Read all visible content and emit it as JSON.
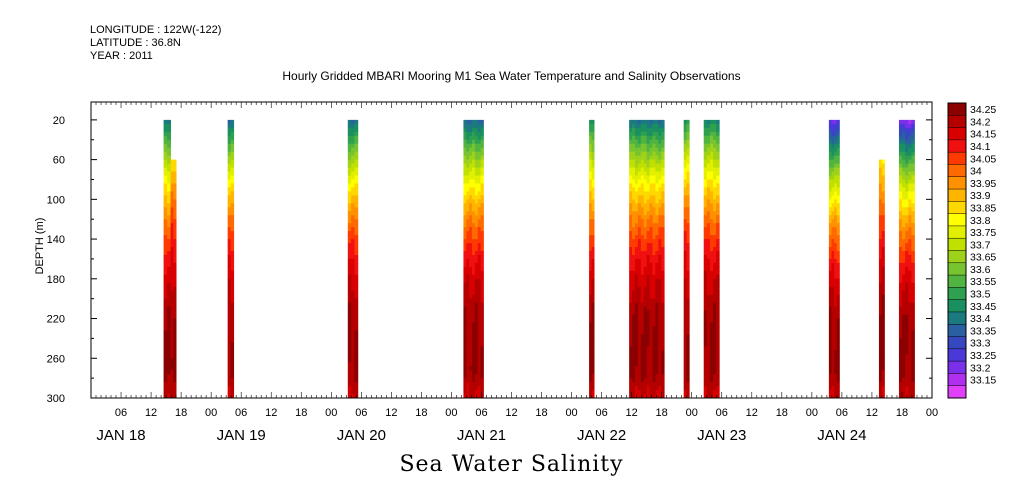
{
  "header": {
    "longitude": "LONGITUDE : 122W(-122)",
    "latitude": "LATITUDE : 36.8N",
    "year": "YEAR : 2011"
  },
  "chart_data": {
    "type": "heatmap",
    "title": "Hourly Gridded MBARI Mooring M1 Sea Water Temperature and Salinity Observations",
    "bottom_title": "Sea Water Salinity",
    "ylabel": "DEPTH (m)",
    "xlabel": "",
    "y_ticks": [
      20,
      60,
      100,
      140,
      180,
      220,
      260,
      300
    ],
    "ylim": [
      300,
      2
    ],
    "xlim_hours": [
      0,
      168
    ],
    "x_hour_ticks": [
      "06",
      "12",
      "18",
      "00",
      "06",
      "12",
      "18",
      "00",
      "06",
      "12",
      "18",
      "00",
      "06",
      "12",
      "18",
      "00",
      "06",
      "12",
      "18",
      "00",
      "06",
      "12",
      "18",
      "00",
      "06",
      "12",
      "18",
      "00"
    ],
    "day_labels": [
      "JAN 18",
      "JAN 19",
      "JAN 20",
      "JAN 21",
      "JAN 22",
      "JAN 23",
      "JAN 24"
    ],
    "colorbar": {
      "levels": [
        "34.25",
        "34.2",
        "34.15",
        "34.1",
        "34.05",
        "34",
        "33.95",
        "33.9",
        "33.85",
        "33.8",
        "33.75",
        "33.7",
        "33.65",
        "33.6",
        "33.55",
        "33.5",
        "33.45",
        "33.4",
        "33.35",
        "33.3",
        "33.25",
        "33.2",
        "33.15"
      ],
      "colors": [
        "#8b0000",
        "#b50000",
        "#d80000",
        "#f01010",
        "#ff3a00",
        "#ff6a00",
        "#ff9000",
        "#ffb400",
        "#ffd800",
        "#ffff00",
        "#e2f000",
        "#c0e000",
        "#9ed21a",
        "#78c430",
        "#52b440",
        "#2fa050",
        "#1a9060",
        "#1a7a80",
        "#2a60a0",
        "#3548c0",
        "#4a38d8",
        "#7a30e8",
        "#b030f0",
        "#e040f8"
      ]
    },
    "data_columns": [
      {
        "start": 14.5,
        "end": 15.9,
        "min_depth": 20,
        "surface": 33.4
      },
      {
        "start": 15.9,
        "end": 17.0,
        "min_depth": 60,
        "surface": 33.62
      },
      {
        "start": 27.3,
        "end": 28.5,
        "min_depth": 20,
        "surface": 33.4
      },
      {
        "start": 51.3,
        "end": 53.3,
        "min_depth": 20,
        "surface": 33.4
      },
      {
        "start": 74.4,
        "end": 78.4,
        "min_depth": 20,
        "surface": 33.38
      },
      {
        "start": 99.5,
        "end": 100.5,
        "min_depth": 20,
        "surface": 33.45
      },
      {
        "start": 107.5,
        "end": 114.5,
        "min_depth": 20,
        "surface": 33.4
      },
      {
        "start": 118.4,
        "end": 119.5,
        "min_depth": 20,
        "surface": 33.5
      },
      {
        "start": 122.4,
        "end": 125.5,
        "min_depth": 20,
        "surface": 33.45
      },
      {
        "start": 147.4,
        "end": 149.5,
        "min_depth": 20,
        "surface": 33.22
      },
      {
        "start": 157.4,
        "end": 158.5,
        "min_depth": 60,
        "surface": 33.65
      },
      {
        "start": 161.4,
        "end": 164.5,
        "min_depth": 20,
        "surface": 33.2
      }
    ]
  }
}
